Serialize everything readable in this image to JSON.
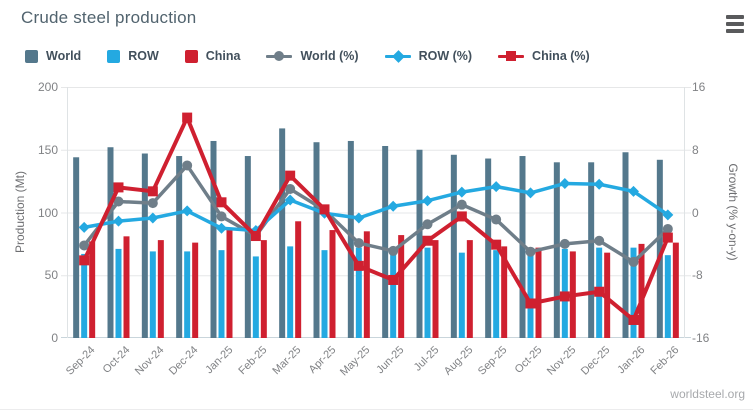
{
  "title": "Crude steel production",
  "watermark": "worldsteel.org",
  "colors": {
    "world": "#54788C",
    "row": "#24A9E1",
    "china": "#CF2030",
    "world_pct": "#6F7E89",
    "row_pct": "#24A9E1",
    "china_pct": "#CF2030",
    "grid": "#E6E7E8",
    "axis_line": "#C9D5DB",
    "side_line": "#DFE3E5",
    "tick_text": "#808285",
    "axis_title_text": "#6D6E71",
    "title_text": "#51636E",
    "legend_text": "#42505C",
    "menu_icon": "#595A5C"
  },
  "legend": [
    {
      "label": "World",
      "type": "bar",
      "color_key": "world"
    },
    {
      "label": "ROW",
      "type": "bar",
      "color_key": "row"
    },
    {
      "label": "China",
      "type": "bar",
      "color_key": "china"
    },
    {
      "label": "World (%)",
      "type": "line",
      "marker": "circle",
      "color_key": "world_pct"
    },
    {
      "label": "ROW (%)",
      "type": "line",
      "marker": "diamond",
      "color_key": "row_pct"
    },
    {
      "label": "China (%)",
      "type": "line",
      "marker": "square",
      "color_key": "china_pct"
    }
  ],
  "chart_data": {
    "type": "combo-bar-line",
    "title": "Crude steel production",
    "categories": [
      "Sep-24",
      "Oct-24",
      "Nov-24",
      "Dec-24",
      "Jan-25",
      "Feb-25",
      "Mar-25",
      "Apr-25",
      "May-25",
      "Jun-25",
      "Jul-25",
      "Aug-25",
      "Sep-25",
      "Oct-25",
      "Nov-25",
      "Dec-25",
      "Jan-26",
      "Feb-26"
    ],
    "bar_series": [
      {
        "name": "World",
        "unit": "Mt",
        "color_key": "world",
        "values": [
          144,
          152,
          147,
          145,
          157,
          145,
          167,
          156,
          157,
          153,
          150,
          146,
          143,
          145,
          140,
          140,
          148,
          142
        ]
      },
      {
        "name": "ROW",
        "unit": "Mt",
        "color_key": "row",
        "values": [
          67,
          71,
          69,
          69,
          70,
          65,
          73,
          70,
          72,
          71,
          72,
          68,
          70,
          72,
          71,
          72,
          72,
          66
        ]
      },
      {
        "name": "China",
        "unit": "Mt",
        "color_key": "china",
        "values": [
          77,
          81,
          78,
          76,
          86,
          78,
          93,
          86,
          85,
          82,
          78,
          78,
          73,
          72,
          69,
          68,
          75,
          76
        ]
      }
    ],
    "line_series": [
      {
        "name": "World (%)",
        "unit": "% y-on-y",
        "marker": "circle",
        "color_key": "world_pct",
        "values": [
          -4.2,
          1.4,
          1.2,
          6.0,
          -0.5,
          -3.0,
          3.0,
          0.3,
          -3.9,
          -4.9,
          -1.5,
          1.0,
          -0.9,
          -5.0,
          -4.0,
          -3.6,
          -6.3,
          -2.1
        ]
      },
      {
        "name": "ROW (%)",
        "unit": "% y-on-y",
        "marker": "diamond",
        "color_key": "row_pct",
        "values": [
          -1.9,
          -1.1,
          -0.7,
          0.2,
          -2.0,
          -2.3,
          1.6,
          -0.1,
          -0.7,
          0.8,
          1.5,
          2.6,
          3.3,
          2.5,
          3.7,
          3.6,
          2.7,
          -0.3
        ]
      },
      {
        "name": "China (%)",
        "unit": "% y-on-y",
        "marker": "square",
        "color_key": "china_pct",
        "values": [
          -6.1,
          3.2,
          2.7,
          12.1,
          1.3,
          -3.0,
          4.7,
          0.4,
          -6.8,
          -8.6,
          -3.6,
          -0.5,
          -4.1,
          -11.6,
          -10.7,
          -10.1,
          -13.7,
          -3.2
        ]
      }
    ],
    "left_axis": {
      "title": "Production (Mt)",
      "min": 0,
      "max": 200,
      "ticks": [
        0,
        50,
        100,
        150,
        200
      ]
    },
    "right_axis": {
      "title": "Growth (% y-on-y)",
      "min": -16,
      "max": 16,
      "ticks": [
        16,
        8,
        0,
        -8,
        -16
      ]
    },
    "grid": true,
    "legend_position": "top"
  }
}
